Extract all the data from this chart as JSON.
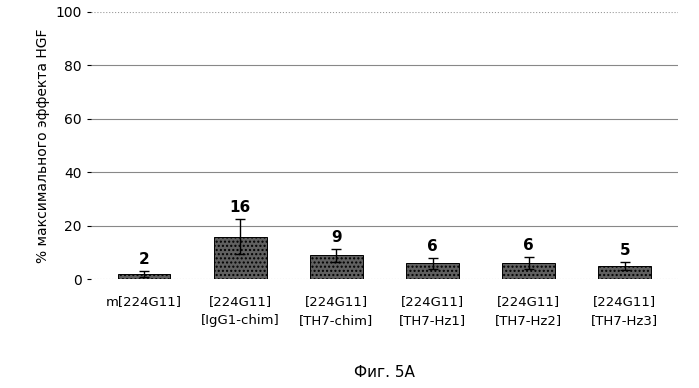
{
  "categories_line1": [
    "m[224G11]",
    "[224G11]",
    "[224G11]",
    "[224G11]",
    "[224G11]",
    "[224G11]"
  ],
  "categories_line2": [
    "",
    "[IgG1-chim]",
    "[TH7-chim]",
    "[TH7-Hz1]",
    "[TH7-Hz2]",
    "[TH7-Hz3]"
  ],
  "values": [
    2,
    16,
    9,
    6,
    6,
    5
  ],
  "errors": [
    1.2,
    6.5,
    2.5,
    2.0,
    2.2,
    1.5
  ],
  "bar_color": "#606060",
  "bar_hatch": "....",
  "ylabel": "% максимального эффекта HGF",
  "xlabel": "Фиг. 5А",
  "ylim": [
    0,
    100
  ],
  "yticks": [
    0,
    20,
    40,
    60,
    80,
    100
  ],
  "background_color": "#ffffff",
  "solid_grid_color": "#888888",
  "dotted_grid_color": "#999999",
  "bar_width": 0.55,
  "label_fontsize": 9.5,
  "value_fontsize": 11,
  "ylabel_fontsize": 10,
  "xlabel_fontsize": 11
}
